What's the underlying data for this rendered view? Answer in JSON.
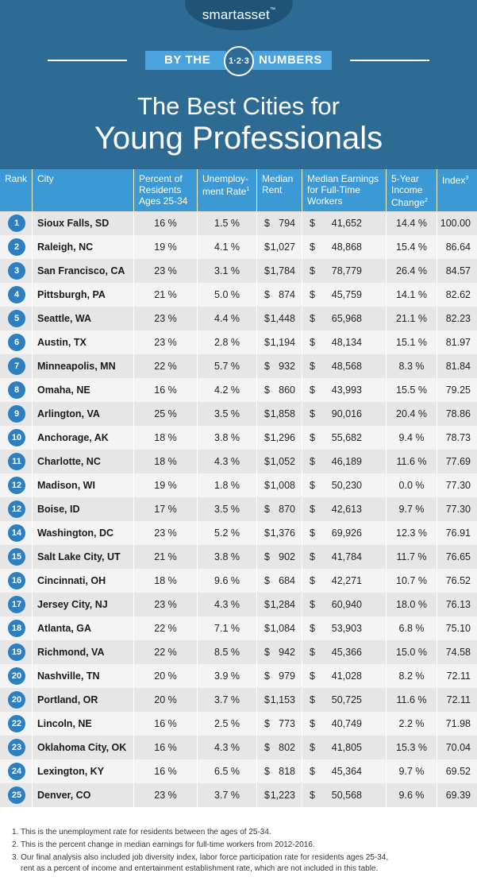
{
  "header": {
    "logo": "smartasset",
    "banner_left": "BY THE",
    "badge": "1·2·3",
    "banner_right": "NUMBERS",
    "title_line1": "The Best Cities for",
    "title_line2": "Young Professionals"
  },
  "colors": {
    "header_bg": "#2d6b94",
    "table_header_bg": "#3b99d6",
    "rank_circle": "#2d7fbf",
    "row_even": "#e6e6e6",
    "row_odd": "#f4f4f4"
  },
  "chart_data": {
    "type": "table",
    "columns": [
      {
        "label": "Rank",
        "sup": ""
      },
      {
        "label": "City",
        "sup": ""
      },
      {
        "label": "Percent of Residents Ages 25-34",
        "sup": ""
      },
      {
        "label": "Unemploy-ment Rate",
        "sup": "1"
      },
      {
        "label": "Median Rent",
        "sup": ""
      },
      {
        "label": "Median Earnings for Full-Time Workers",
        "sup": ""
      },
      {
        "label": "5-Year Income Change",
        "sup": "2"
      },
      {
        "label": "Index",
        "sup": "3"
      }
    ],
    "rows": [
      {
        "rank": "1",
        "city": "Sioux Falls, SD",
        "pct": "16 %",
        "unemp": "1.5 %",
        "rent_sym": "$",
        "rent": "794",
        "earn_sym": "$",
        "earn": "41,652",
        "change": "14.4 %",
        "index": "100.00"
      },
      {
        "rank": "2",
        "city": "Raleigh, NC",
        "pct": "19 %",
        "unemp": "4.1 %",
        "rent_sym": "$",
        "rent": "1,027",
        "earn_sym": "$",
        "earn": "48,868",
        "change": "15.4 %",
        "index": "86.64"
      },
      {
        "rank": "3",
        "city": "San Francisco, CA",
        "pct": "23 %",
        "unemp": "3.1 %",
        "rent_sym": "$",
        "rent": "1,784",
        "earn_sym": "$",
        "earn": "78,779",
        "change": "26.4 %",
        "index": "84.57"
      },
      {
        "rank": "4",
        "city": "Pittsburgh, PA",
        "pct": "21 %",
        "unemp": "5.0 %",
        "rent_sym": "$",
        "rent": "874",
        "earn_sym": "$",
        "earn": "45,759",
        "change": "14.1 %",
        "index": "82.62"
      },
      {
        "rank": "5",
        "city": "Seattle, WA",
        "pct": "23 %",
        "unemp": "4.4 %",
        "rent_sym": "$",
        "rent": "1,448",
        "earn_sym": "$",
        "earn": "65,968",
        "change": "21.1 %",
        "index": "82.23"
      },
      {
        "rank": "6",
        "city": "Austin, TX",
        "pct": "23 %",
        "unemp": "2.8 %",
        "rent_sym": "$",
        "rent": "1,194",
        "earn_sym": "$",
        "earn": "48,134",
        "change": "15.1 %",
        "index": "81.97"
      },
      {
        "rank": "7",
        "city": "Minneapolis, MN",
        "pct": "22 %",
        "unemp": "5.7 %",
        "rent_sym": "$",
        "rent": "932",
        "earn_sym": "$",
        "earn": "48,568",
        "change": "8.3 %",
        "index": "81.84"
      },
      {
        "rank": "8",
        "city": "Omaha, NE",
        "pct": "16 %",
        "unemp": "4.2 %",
        "rent_sym": "$",
        "rent": "860",
        "earn_sym": "$",
        "earn": "43,993",
        "change": "15.5 %",
        "index": "79.25"
      },
      {
        "rank": "9",
        "city": "Arlington, VA",
        "pct": "25 %",
        "unemp": "3.5 %",
        "rent_sym": "$",
        "rent": "1,858",
        "earn_sym": "$",
        "earn": "90,016",
        "change": "20.4 %",
        "index": "78.86"
      },
      {
        "rank": "10",
        "city": "Anchorage, AK",
        "pct": "18 %",
        "unemp": "3.8 %",
        "rent_sym": "$",
        "rent": "1,296",
        "earn_sym": "$",
        "earn": "55,682",
        "change": "9.4 %",
        "index": "78.73"
      },
      {
        "rank": "11",
        "city": "Charlotte, NC",
        "pct": "18 %",
        "unemp": "4.3 %",
        "rent_sym": "$",
        "rent": "1,052",
        "earn_sym": "$",
        "earn": "46,189",
        "change": "11.6 %",
        "index": "77.69"
      },
      {
        "rank": "12",
        "city": "Madison, WI",
        "pct": "19 %",
        "unemp": "1.8 %",
        "rent_sym": "$",
        "rent": "1,008",
        "earn_sym": "$",
        "earn": "50,230",
        "change": "0.0 %",
        "index": "77.30"
      },
      {
        "rank": "12",
        "city": "Boise, ID",
        "pct": "17 %",
        "unemp": "3.5 %",
        "rent_sym": "$",
        "rent": "870",
        "earn_sym": "$",
        "earn": "42,613",
        "change": "9.7 %",
        "index": "77.30"
      },
      {
        "rank": "14",
        "city": "Washington, DC",
        "pct": "23 %",
        "unemp": "5.2 %",
        "rent_sym": "$",
        "rent": "1,376",
        "earn_sym": "$",
        "earn": "69,926",
        "change": "12.3 %",
        "index": "76.91"
      },
      {
        "rank": "15",
        "city": "Salt Lake City, UT",
        "pct": "21 %",
        "unemp": "3.8 %",
        "rent_sym": "$",
        "rent": "902",
        "earn_sym": "$",
        "earn": "41,784",
        "change": "11.7 %",
        "index": "76.65"
      },
      {
        "rank": "16",
        "city": "Cincinnati, OH",
        "pct": "18 %",
        "unemp": "9.6 %",
        "rent_sym": "$",
        "rent": "684",
        "earn_sym": "$",
        "earn": "42,271",
        "change": "10.7 %",
        "index": "76.52"
      },
      {
        "rank": "17",
        "city": "Jersey City, NJ",
        "pct": "23 %",
        "unemp": "4.3 %",
        "rent_sym": "$",
        "rent": "1,284",
        "earn_sym": "$",
        "earn": "60,940",
        "change": "18.0 %",
        "index": "76.13"
      },
      {
        "rank": "18",
        "city": "Atlanta, GA",
        "pct": "22 %",
        "unemp": "7.1 %",
        "rent_sym": "$",
        "rent": "1,084",
        "earn_sym": "$",
        "earn": "53,903",
        "change": "6.8 %",
        "index": "75.10"
      },
      {
        "rank": "19",
        "city": "Richmond, VA",
        "pct": "22 %",
        "unemp": "8.5 %",
        "rent_sym": "$",
        "rent": "942",
        "earn_sym": "$",
        "earn": "45,366",
        "change": "15.0 %",
        "index": "74.58"
      },
      {
        "rank": "20",
        "city": "Nashville, TN",
        "pct": "20 %",
        "unemp": "3.9 %",
        "rent_sym": "$",
        "rent": "979",
        "earn_sym": "$",
        "earn": "41,028",
        "change": "8.2 %",
        "index": "72.11"
      },
      {
        "rank": "20",
        "city": "Portland, OR",
        "pct": "20 %",
        "unemp": "3.7 %",
        "rent_sym": "$",
        "rent": "1,153",
        "earn_sym": "$",
        "earn": "50,725",
        "change": "11.6 %",
        "index": "72.11"
      },
      {
        "rank": "22",
        "city": "Lincoln, NE",
        "pct": "16 %",
        "unemp": "2.5 %",
        "rent_sym": "$",
        "rent": "773",
        "earn_sym": "$",
        "earn": "40,749",
        "change": "2.2 %",
        "index": "71.98"
      },
      {
        "rank": "23",
        "city": "Oklahoma City, OK",
        "pct": "16 %",
        "unemp": "4.3 %",
        "rent_sym": "$",
        "rent": "802",
        "earn_sym": "$",
        "earn": "41,805",
        "change": "15.3 %",
        "index": "70.04"
      },
      {
        "rank": "24",
        "city": "Lexington, KY",
        "pct": "16 %",
        "unemp": "6.5 %",
        "rent_sym": "$",
        "rent": "818",
        "earn_sym": "$",
        "earn": "45,364",
        "change": "9.7 %",
        "index": "69.52"
      },
      {
        "rank": "25",
        "city": "Denver, CO",
        "pct": "23 %",
        "unemp": "3.7 %",
        "rent_sym": "$",
        "rent": "1,223",
        "earn_sym": "$",
        "earn": "50,568",
        "change": "9.6 %",
        "index": "69.39"
      }
    ]
  },
  "footnotes": [
    {
      "marker": "1.",
      "lines": [
        "This is the unemployment rate for residents between the ages of 25-34."
      ]
    },
    {
      "marker": "2.",
      "lines": [
        "This is the percent change in median earnings for full-time workers from 2012-2016."
      ]
    },
    {
      "marker": "3.",
      "lines": [
        "Our final analysis also included job diversity index, labor force participation rate for residents ages 25-34,",
        "rent as a percent of income and entertainment establishment rate, which are not included in this table."
      ]
    }
  ]
}
